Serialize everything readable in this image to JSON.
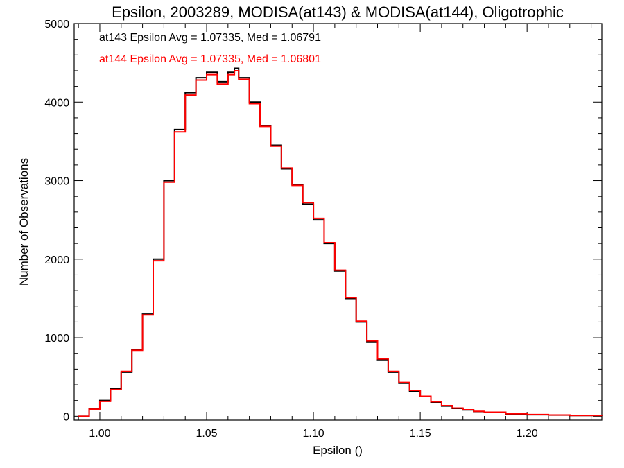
{
  "chart_data": {
    "type": "line",
    "title": "Epsilon, 2003289, MODISA(at143) & MODISA(at144), Oligotrophic",
    "xlabel": "Epsilon ()",
    "ylabel": "Number of Observations",
    "xlim": [
      0.988,
      1.235
    ],
    "ylim": [
      -50,
      5000
    ],
    "x_ticks": [
      1.0,
      1.05,
      1.1,
      1.15,
      1.2
    ],
    "x_tick_labels": [
      "1.00",
      "1.05",
      "1.10",
      "1.15",
      "1.20"
    ],
    "y_ticks": [
      0,
      1000,
      2000,
      3000,
      4000,
      5000
    ],
    "y_tick_labels": [
      "0",
      "1000",
      "2000",
      "3000",
      "4000",
      "5000"
    ],
    "step": true,
    "grid": false,
    "legend_position": "top-left",
    "annotations": [
      {
        "text": "at143 Epsilon Avg = 1.07335, Med = 1.06791",
        "color": "#000000"
      },
      {
        "text": "at144 Epsilon Avg = 1.07335, Med = 1.06801",
        "color": "#ff0000"
      }
    ],
    "series": [
      {
        "color": "#000000",
        "x": [
          0.99,
          0.995,
          1.0,
          1.005,
          1.01,
          1.015,
          1.02,
          1.025,
          1.03,
          1.035,
          1.04,
          1.045,
          1.05,
          1.055,
          1.06,
          1.063,
          1.065,
          1.07,
          1.075,
          1.08,
          1.085,
          1.09,
          1.095,
          1.1,
          1.105,
          1.11,
          1.115,
          1.12,
          1.125,
          1.13,
          1.135,
          1.14,
          1.145,
          1.15,
          1.155,
          1.16,
          1.165,
          1.17,
          1.175,
          1.18,
          1.19,
          1.2,
          1.21,
          1.22,
          1.235
        ],
        "y": [
          0,
          100,
          200,
          350,
          560,
          850,
          1300,
          2000,
          3000,
          3650,
          4120,
          4310,
          4380,
          4260,
          4380,
          4430,
          4310,
          4000,
          3700,
          3450,
          3150,
          2950,
          2700,
          2500,
          2200,
          1850,
          1500,
          1200,
          950,
          720,
          560,
          420,
          320,
          250,
          180,
          130,
          100,
          80,
          60,
          50,
          30,
          20,
          15,
          10,
          5
        ]
      },
      {
        "color": "#ff0000",
        "x": [
          0.99,
          0.995,
          1.0,
          1.005,
          1.01,
          1.015,
          1.02,
          1.025,
          1.03,
          1.035,
          1.04,
          1.045,
          1.05,
          1.055,
          1.06,
          1.063,
          1.065,
          1.07,
          1.075,
          1.08,
          1.085,
          1.09,
          1.095,
          1.1,
          1.105,
          1.11,
          1.115,
          1.12,
          1.125,
          1.13,
          1.135,
          1.14,
          1.145,
          1.15,
          1.155,
          1.16,
          1.165,
          1.17,
          1.175,
          1.18,
          1.19,
          1.2,
          1.21,
          1.22,
          1.235
        ],
        "y": [
          0,
          90,
          190,
          340,
          570,
          840,
          1290,
          1980,
          2980,
          3620,
          4090,
          4280,
          4350,
          4230,
          4350,
          4400,
          4290,
          3980,
          3690,
          3440,
          3160,
          2940,
          2720,
          2520,
          2210,
          1860,
          1510,
          1210,
          960,
          730,
          570,
          430,
          330,
          255,
          185,
          135,
          105,
          82,
          62,
          52,
          32,
          22,
          16,
          11,
          6
        ]
      }
    ]
  }
}
